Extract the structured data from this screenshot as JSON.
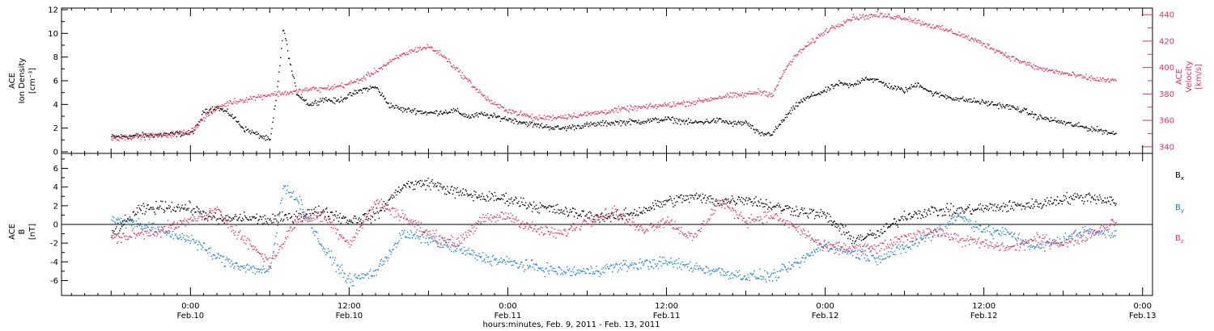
{
  "chart_data": [
    {
      "type": "scatter",
      "name_panel": "density-velocity",
      "ylabel_left": [
        "ACE",
        "Ion Density",
        "[cm⁻³]"
      ],
      "ylabel_right": [
        "ACE",
        "Velocity",
        "[km/s]"
      ],
      "ylim_left": [
        0,
        12
      ],
      "ylim_right": [
        335,
        445
      ],
      "yticks_left": [
        "0",
        "2",
        "4",
        "6",
        "8",
        "10",
        "12"
      ],
      "yticks_right": [
        "340",
        "360",
        "380",
        "400",
        "420",
        "440"
      ],
      "colors": {
        "density": "#000000",
        "velocity": "#e8325a"
      },
      "series": [
        {
          "key": "density",
          "axis": "left",
          "x": [
            -6,
            -4,
            -2,
            0,
            0.5,
            1,
            2,
            3,
            4,
            5,
            6,
            6.5,
            7,
            7.5,
            8,
            9,
            10,
            11,
            12,
            13,
            14,
            15,
            16,
            17,
            18,
            19,
            20,
            21,
            22,
            23,
            24,
            26,
            28,
            30,
            32,
            34,
            36,
            38,
            40,
            41,
            42,
            43,
            44,
            45,
            46,
            47,
            48,
            49,
            50,
            51,
            52,
            53,
            54,
            55,
            56,
            58,
            60,
            62,
            63,
            64,
            66,
            68,
            69,
            70
          ],
          "y": [
            1.3,
            1.4,
            1.5,
            1.6,
            2.2,
            3.5,
            3.8,
            3.2,
            2.0,
            1.5,
            1.0,
            5.0,
            10.5,
            7.5,
            5.0,
            4.0,
            4.5,
            4.3,
            4.8,
            5.3,
            5.5,
            4.0,
            3.6,
            3.5,
            3.3,
            3.4,
            3.5,
            3.0,
            3.2,
            3.0,
            2.8,
            2.3,
            2.0,
            2.3,
            2.5,
            2.6,
            2.8,
            2.5,
            2.7,
            2.4,
            2.5,
            1.5,
            1.6,
            3.0,
            4.2,
            4.8,
            5.2,
            5.8,
            5.6,
            6.3,
            6.0,
            5.5,
            5.2,
            5.8,
            5.0,
            4.5,
            4.2,
            3.8,
            3.5,
            3.0,
            2.5,
            2.0,
            1.8,
            1.5
          ]
        },
        {
          "key": "velocity",
          "axis": "right",
          "x": [
            -6,
            -4,
            -2,
            0,
            1,
            2,
            3,
            4,
            5,
            6,
            7,
            8,
            9,
            10,
            11,
            12,
            13,
            14,
            15,
            16,
            17,
            18,
            19,
            20,
            21,
            22,
            23,
            24,
            26,
            28,
            30,
            32,
            34,
            36,
            38,
            40,
            42,
            43,
            44,
            45,
            46,
            47,
            48,
            50,
            52,
            54,
            56,
            58,
            60,
            62,
            64,
            66,
            68,
            70
          ],
          "y": [
            347,
            348,
            349,
            352,
            362,
            370,
            374,
            376,
            378,
            380,
            381,
            382,
            384,
            384,
            386,
            388,
            392,
            398,
            404,
            410,
            414,
            416,
            410,
            400,
            390,
            380,
            372,
            368,
            362,
            363,
            365,
            368,
            370,
            372,
            374,
            378,
            380,
            382,
            380,
            400,
            412,
            420,
            428,
            438,
            440,
            438,
            432,
            426,
            418,
            408,
            400,
            396,
            392,
            390
          ]
        }
      ]
    },
    {
      "type": "scatter",
      "name_panel": "magnetic-field",
      "ylabel_left": [
        "ACE",
        "B",
        "[nT]"
      ],
      "ylim": [
        -7.6,
        7.6
      ],
      "yticks_left": [
        "-6",
        "-4",
        "-2",
        "0",
        "2",
        "4",
        "6"
      ],
      "legend_placement": "right",
      "legend": [
        {
          "base": "B",
          "sub": "x",
          "color": "#000000"
        },
        {
          "base": "B",
          "sub": "y",
          "color": "#1a7fd6"
        },
        {
          "base": "B",
          "sub": "z",
          "color": "#e8325a"
        }
      ],
      "series": [
        {
          "key": "bx",
          "x": [
            -6,
            -4,
            -2,
            0,
            2,
            4,
            6,
            8,
            10,
            12,
            14,
            16,
            18,
            20,
            22,
            24,
            26,
            28,
            30,
            32,
            34,
            36,
            38,
            40,
            42,
            44,
            46,
            48,
            50,
            52,
            54,
            56,
            58,
            60,
            62,
            64,
            66,
            68,
            70
          ],
          "y": [
            -1.0,
            1.5,
            2.0,
            1.8,
            0.5,
            0.8,
            0.5,
            1.0,
            1.5,
            0.5,
            1.0,
            4.2,
            4.5,
            3.5,
            3.0,
            2.8,
            2.0,
            1.5,
            1.0,
            0.8,
            1.5,
            2.5,
            3.0,
            2.5,
            2.8,
            2.0,
            1.5,
            1.0,
            -1.5,
            -1.0,
            1.0,
            1.5,
            1.5,
            1.8,
            2.0,
            2.2,
            2.8,
            3.0,
            2.5
          ]
        },
        {
          "key": "by",
          "x": [
            -6,
            -4,
            -2,
            0,
            2,
            4,
            6,
            7,
            8,
            10,
            12,
            14,
            16,
            18,
            20,
            22,
            24,
            26,
            28,
            30,
            32,
            34,
            36,
            38,
            40,
            42,
            44,
            46,
            48,
            50,
            52,
            54,
            56,
            58,
            60,
            62,
            64,
            66,
            68,
            70
          ],
          "y": [
            0.5,
            0.2,
            -0.8,
            -1.5,
            -3.5,
            -4.5,
            -5.0,
            4.0,
            3.0,
            -2.5,
            -6.0,
            -5.0,
            -1.0,
            -1.5,
            -2.5,
            -3.5,
            -4.0,
            -4.5,
            -5.0,
            -5.0,
            -4.5,
            -4.2,
            -4.0,
            -4.5,
            -5.0,
            -5.5,
            -5.5,
            -4.0,
            -2.0,
            -3.0,
            -3.5,
            -2.5,
            -1.0,
            1.0,
            -0.5,
            -1.0,
            -2.5,
            -1.5,
            -0.5,
            -1.0
          ]
        },
        {
          "key": "bz",
          "x": [
            -6,
            -4,
            -2,
            0,
            2,
            4,
            6,
            8,
            10,
            12,
            14,
            16,
            18,
            20,
            22,
            24,
            26,
            28,
            30,
            32,
            34,
            36,
            38,
            40,
            42,
            44,
            46,
            48,
            50,
            52,
            54,
            56,
            58,
            60,
            62,
            64,
            66,
            68,
            70
          ],
          "y": [
            -1.5,
            -1.0,
            -0.5,
            0.5,
            1.5,
            -1.5,
            -4.0,
            0.5,
            1.0,
            -2.0,
            2.5,
            1.0,
            -1.0,
            -2.0,
            0.5,
            1.0,
            -0.5,
            -1.0,
            0.5,
            1.5,
            -0.5,
            0.5,
            -1.5,
            2.5,
            0.5,
            1.0,
            -0.5,
            -2.5,
            -2.5,
            -2.5,
            -1.5,
            -0.5,
            -1.5,
            -2.0,
            -2.5,
            -1.5,
            -2.0,
            -1.0,
            0.5
          ]
        }
      ]
    }
  ],
  "x_axis": {
    "range_hours": [
      -9.75,
      72.75
    ],
    "ticks": [
      {
        "hours": 0,
        "time": "0:00",
        "day": "Feb.10"
      },
      {
        "hours": 12,
        "time": "12:00",
        "day": "Feb.10"
      },
      {
        "hours": 24,
        "time": "0:00",
        "day": "Feb.11"
      },
      {
        "hours": 36,
        "time": "12:00",
        "day": "Feb.11"
      },
      {
        "hours": 48,
        "time": "0:00",
        "day": "Feb.12"
      },
      {
        "hours": 60,
        "time": "12:00",
        "day": "Feb.12"
      },
      {
        "hours": 72,
        "time": "0:00",
        "day": "Feb.13"
      }
    ],
    "title": "hours:minutes, Feb.  9, 2011 - Feb. 13, 2011"
  }
}
